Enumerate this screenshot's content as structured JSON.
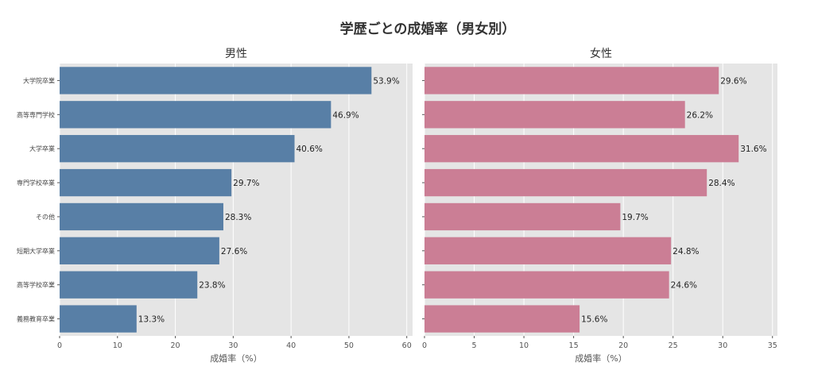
{
  "figure": {
    "title": "学歴ごとの成婚率（男女別）"
  },
  "chart_data": [
    {
      "type": "bar",
      "orientation": "horizontal",
      "title": "男性",
      "xlabel": "成婚率（%）",
      "ylabel": "",
      "xlim": [
        0,
        61
      ],
      "xticks": [
        0,
        10,
        20,
        30,
        40,
        50,
        60
      ],
      "grid": true,
      "categories": [
        "大学院卒業",
        "高等専門学校",
        "大学卒業",
        "専門学校卒業",
        "その他",
        "短期大学卒業",
        "高等学校卒業",
        "義務教育卒業"
      ],
      "values": [
        53.9,
        46.9,
        40.6,
        29.7,
        28.3,
        27.6,
        23.8,
        13.3
      ],
      "data_labels": [
        "53.9%",
        "46.9%",
        "40.6%",
        "29.7%",
        "28.3%",
        "27.6%",
        "23.8%",
        "13.3%"
      ],
      "color": "#587fa6"
    },
    {
      "type": "bar",
      "orientation": "horizontal",
      "title": "女性",
      "xlabel": "成婚率（%）",
      "ylabel": "",
      "xlim": [
        0,
        35.5
      ],
      "xticks": [
        0,
        5,
        10,
        15,
        20,
        25,
        30,
        35
      ],
      "grid": true,
      "categories": [
        "大学院卒業",
        "高等専門学校",
        "大学卒業",
        "専門学校卒業",
        "その他",
        "短期大学卒業",
        "高等学校卒業",
        "義務教育卒業"
      ],
      "values": [
        29.6,
        26.2,
        31.6,
        28.4,
        19.7,
        24.8,
        24.6,
        15.6
      ],
      "data_labels": [
        "29.6%",
        "26.2%",
        "31.6%",
        "28.4%",
        "19.7%",
        "24.8%",
        "24.6%",
        "15.6%"
      ],
      "color": "#cb7e95"
    }
  ]
}
